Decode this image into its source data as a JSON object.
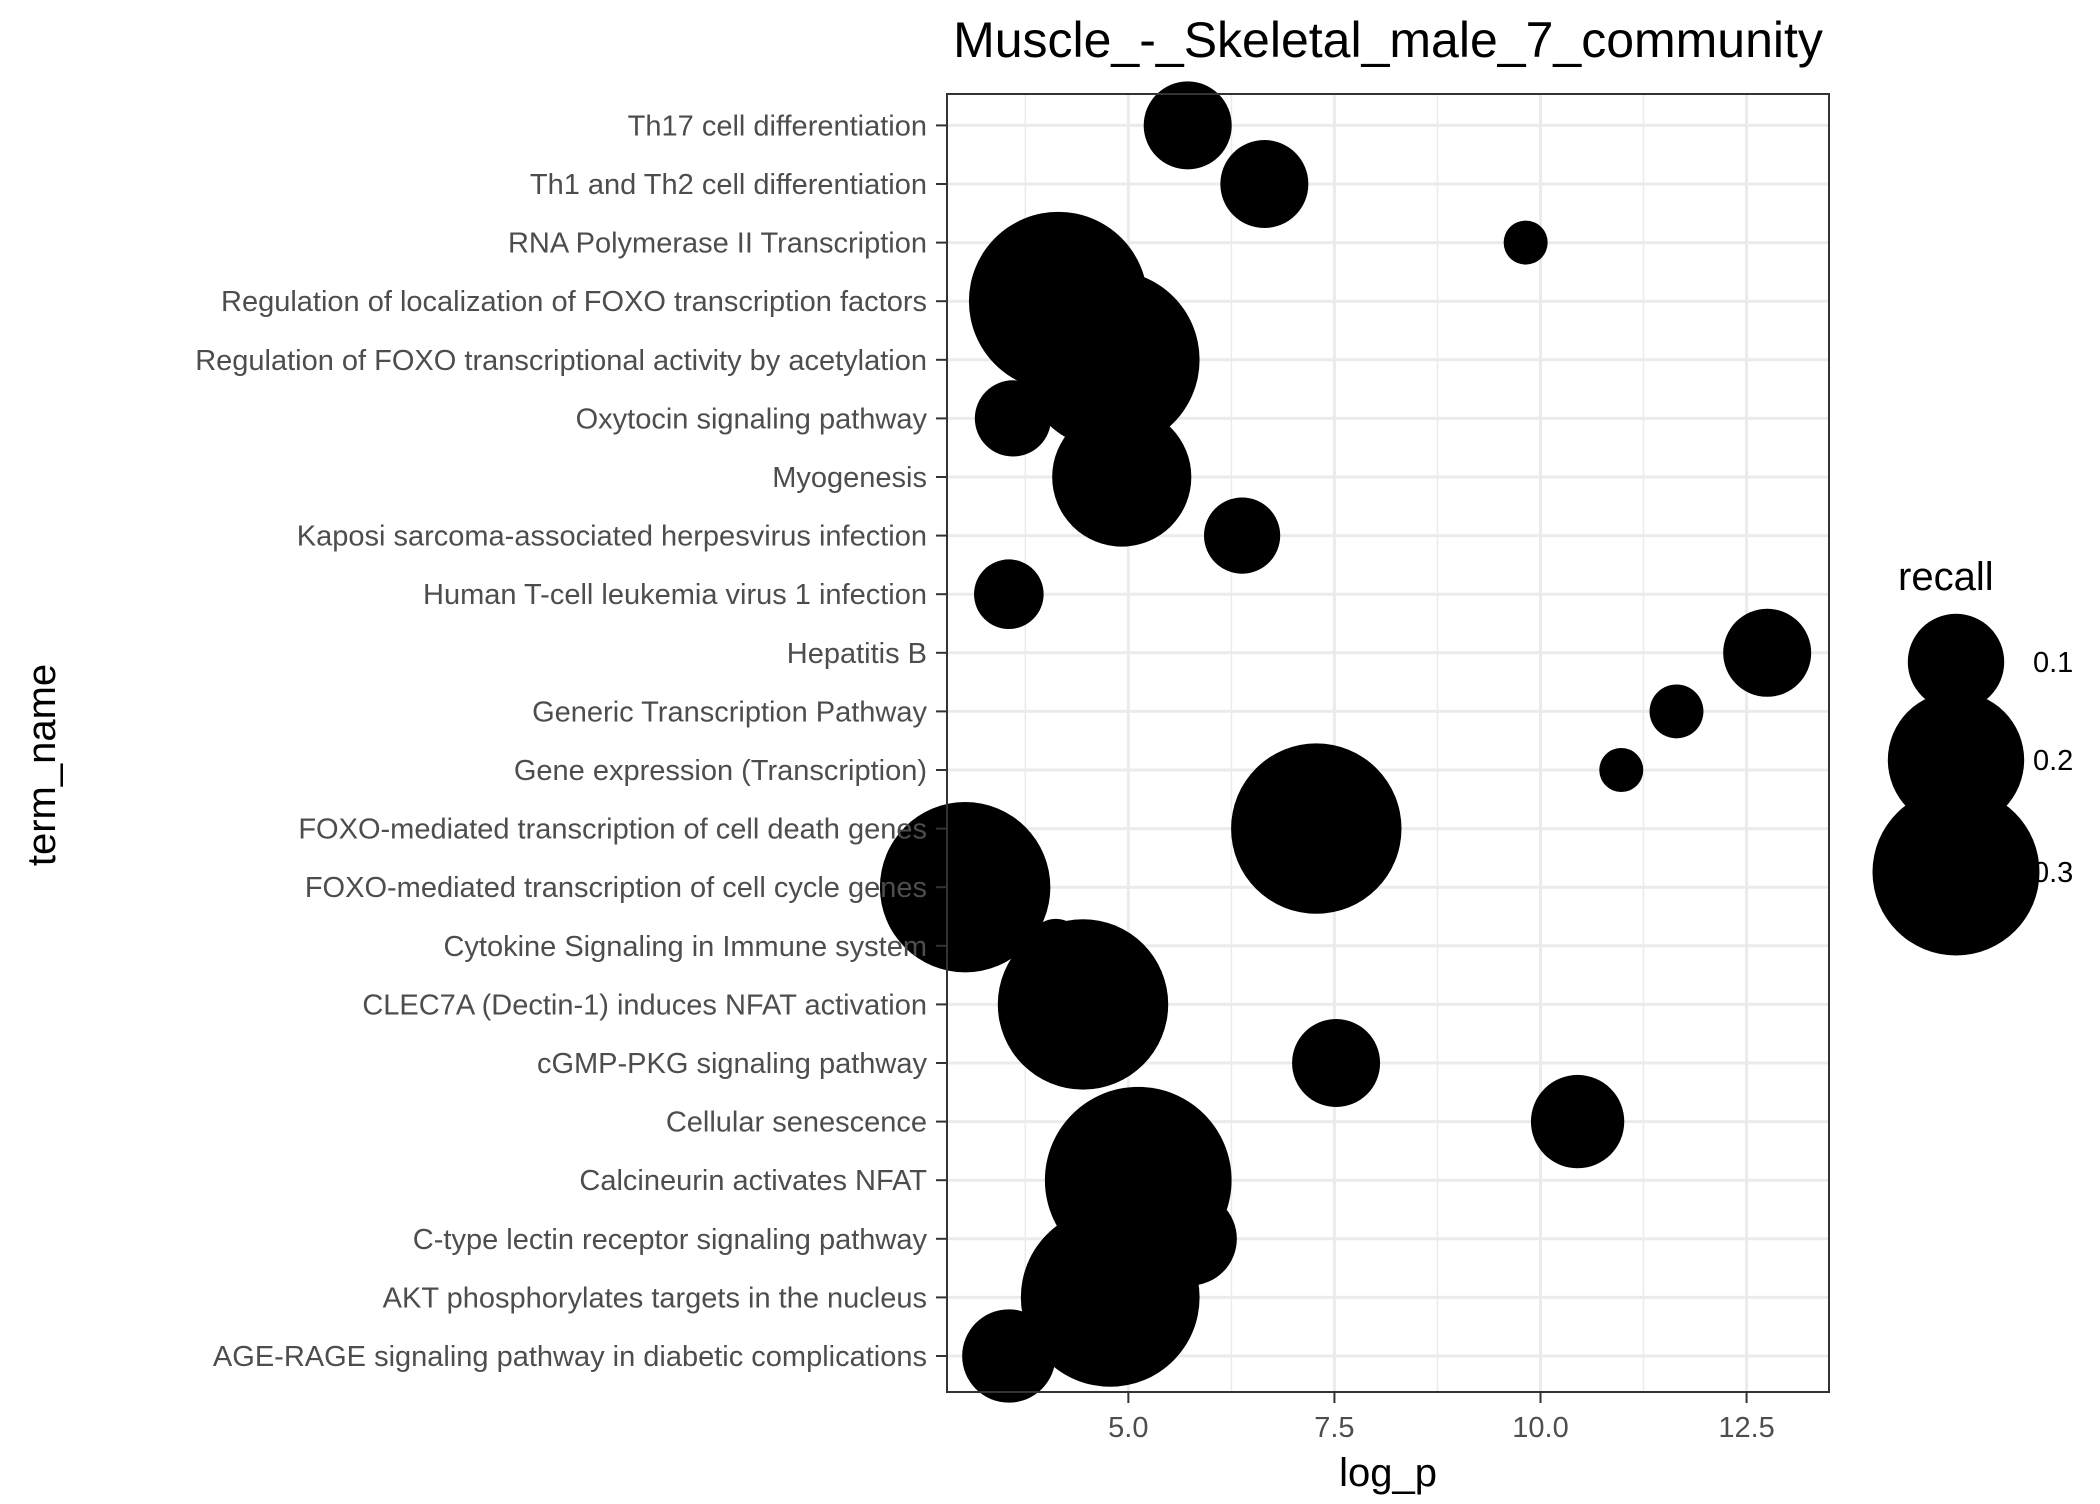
{
  "chart_data": {
    "type": "scatter",
    "title": "Muscle_-_Skeletal_male_7_community",
    "xlabel": "log_p",
    "ylabel": "term_name",
    "xlim": [
      2.8,
      13.5
    ],
    "xticks": [
      5.0,
      7.5,
      10.0,
      12.5
    ],
    "xtick_labels": [
      "5.0",
      "7.5",
      "10.0",
      "12.5"
    ],
    "grid": true,
    "size_variable": "recall",
    "legend": {
      "title": "recall",
      "position": "right",
      "values": [
        0.1,
        0.2,
        0.3
      ],
      "labels": [
        "0.1",
        "0.2",
        "0.3"
      ]
    },
    "colors": {
      "point": "#000000",
      "panel_border": "#333333",
      "grid": "#ebebeb"
    },
    "categories": [
      "AGE-RAGE signaling pathway in diabetic complications",
      "AKT phosphorylates targets in the nucleus",
      "C-type lectin receptor signaling pathway",
      "Calcineurin activates NFAT",
      "Cellular senescence",
      "cGMP-PKG signaling pathway",
      "CLEC7A (Dectin-1) induces NFAT activation",
      "Cytokine Signaling in Immune system",
      "FOXO-mediated transcription of cell cycle genes",
      "FOXO-mediated transcription of cell death genes",
      "Gene expression (Transcription)",
      "Generic Transcription Pathway",
      "Hepatitis B",
      "Human T-cell leukemia virus 1 infection",
      "Kaposi sarcoma-associated herpesvirus infection",
      "Myogenesis",
      "Oxytocin signaling pathway",
      "Regulation of FOXO transcriptional activity by acetylation",
      "Regulation of localization of FOXO transcription factors",
      "RNA Polymerase II Transcription",
      "Th1 and Th2 cell differentiation",
      "Th17 cell differentiation"
    ],
    "points": [
      {
        "term": "AGE-RAGE signaling pathway in diabetic complications",
        "log_p": 3.55,
        "recall": 0.09
      },
      {
        "term": "AKT phosphorylates targets in the nucleus",
        "log_p": 4.78,
        "recall": 0.33
      },
      {
        "term": "C-type lectin receptor signaling pathway",
        "log_p": 5.75,
        "recall": 0.09
      },
      {
        "term": "Calcineurin activates NFAT",
        "log_p": 5.12,
        "recall": 0.36
      },
      {
        "term": "Cellular senescence",
        "log_p": 10.45,
        "recall": 0.09
      },
      {
        "term": "cGMP-PKG signaling pathway",
        "log_p": 7.52,
        "recall": 0.08
      },
      {
        "term": "CLEC7A (Dectin-1) induces NFAT activation",
        "log_p": 4.45,
        "recall": 0.3
      },
      {
        "term": "Cytokine Signaling in Immune system",
        "log_p": 4.12,
        "recall": 0.03
      },
      {
        "term": "FOXO-mediated transcription of cell cycle genes",
        "log_p": 3.02,
        "recall": 0.3
      },
      {
        "term": "FOXO-mediated transcription of cell death genes",
        "log_p": 7.28,
        "recall": 0.3
      },
      {
        "term": "Gene expression (Transcription)",
        "log_p": 10.98,
        "recall": 0.02
      },
      {
        "term": "Generic Transcription Pathway",
        "log_p": 11.65,
        "recall": 0.03
      },
      {
        "term": "Hepatitis B",
        "log_p": 12.75,
        "recall": 0.08
      },
      {
        "term": "Human T-cell leukemia virus 1 infection",
        "log_p": 3.55,
        "recall": 0.05
      },
      {
        "term": "Kaposi sarcoma-associated herpesvirus infection",
        "log_p": 6.38,
        "recall": 0.06
      },
      {
        "term": "Myogenesis",
        "log_p": 4.92,
        "recall": 0.2
      },
      {
        "term": "Oxytocin signaling pathway",
        "log_p": 3.6,
        "recall": 0.06
      },
      {
        "term": "Regulation of FOXO transcriptional activity by acetylation",
        "log_p": 4.78,
        "recall": 0.33
      },
      {
        "term": "Regulation of localization of FOXO transcription factors",
        "log_p": 4.15,
        "recall": 0.33
      },
      {
        "term": "RNA Polymerase II Transcription",
        "log_p": 9.82,
        "recall": 0.02
      },
      {
        "term": "Th1 and Th2 cell differentiation",
        "log_p": 6.65,
        "recall": 0.08
      },
      {
        "term": "Th17 cell differentiation",
        "log_p": 5.72,
        "recall": 0.08
      }
    ]
  }
}
